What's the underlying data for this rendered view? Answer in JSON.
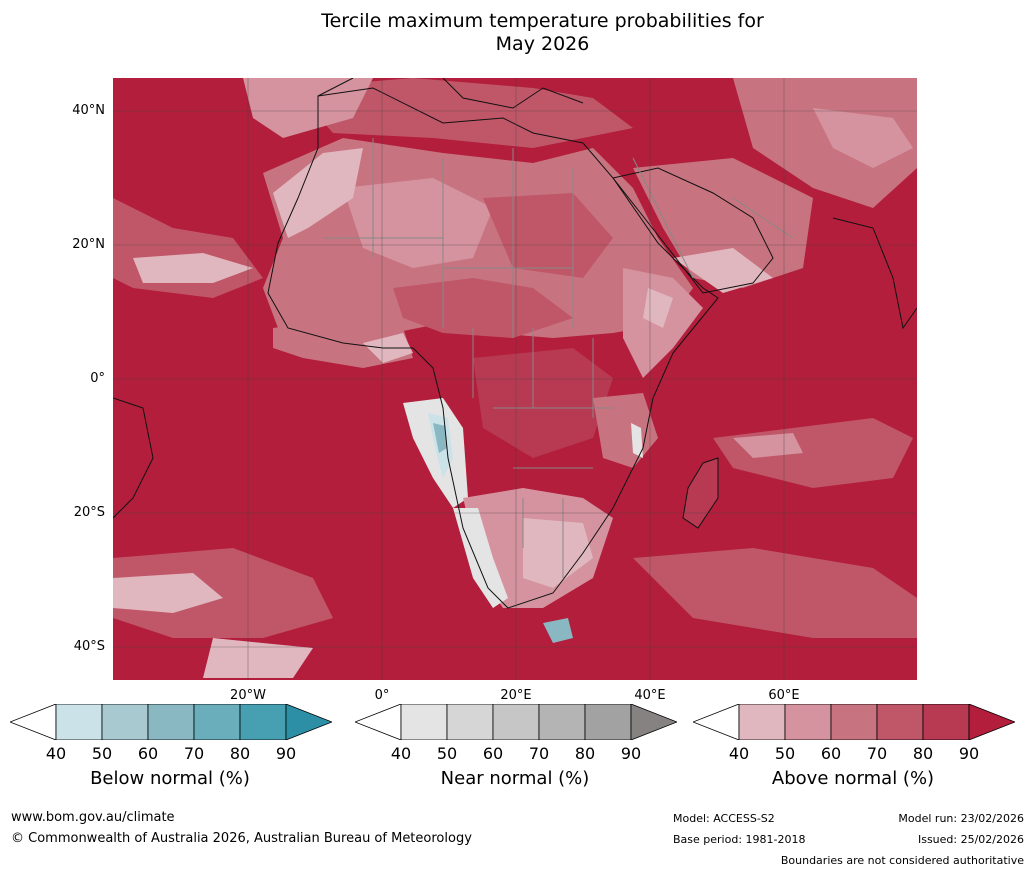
{
  "title": {
    "line1": "Tercile maximum temperature probabilities for",
    "line2": "May 2026"
  },
  "map": {
    "lat_labels": [
      "40°N",
      "20°N",
      "0°",
      "20°S",
      "40°S"
    ],
    "lon_labels": [
      "20°W",
      "0°",
      "20°E",
      "40°E",
      "60°E"
    ]
  },
  "legends": [
    {
      "label": "Below normal (%)",
      "ticks": [
        "40",
        "50",
        "60",
        "70",
        "80",
        "90"
      ],
      "colors": [
        "#cbe2e9",
        "#a8c9d0",
        "#89b7c2",
        "#6aaebb",
        "#47a0b1",
        "#2d8fa5"
      ]
    },
    {
      "label": "Near normal (%)",
      "ticks": [
        "40",
        "50",
        "60",
        "70",
        "80",
        "90"
      ],
      "colors": [
        "#e4e4e4",
        "#d6d6d6",
        "#c6c6c6",
        "#b4b4b4",
        "#a2a2a2",
        "#878282"
      ]
    },
    {
      "label": "Above normal (%)",
      "ticks": [
        "40",
        "50",
        "60",
        "70",
        "80",
        "90"
      ],
      "colors": [
        "#e1b7bf",
        "#d4939e",
        "#c87480",
        "#c05769",
        "#b73a52",
        "#b21e3c"
      ]
    }
  ],
  "footer": {
    "website": "www.bom.gov.au/climate",
    "copyright": "© Commonwealth of Australia 2026, Australian Bureau of Meteorology",
    "model": "Model: ACCESS-S2",
    "base_period": "Base period: 1981-2018",
    "model_run": "Model run: 23/02/2026",
    "issued": "Issued: 25/02/2026",
    "disclaimer": "Boundaries are not considered authoritative"
  }
}
